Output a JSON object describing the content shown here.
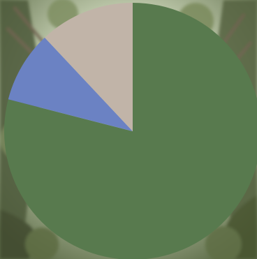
{
  "chart_data": {
    "type": "pie",
    "start_angle_deg": 0,
    "direction": "clockwise",
    "slices": [
      {
        "value": 79.0,
        "color": "#587a4e"
      },
      {
        "value": 9.0,
        "color": "#6b82c3"
      },
      {
        "value": 12.0,
        "color": "#c1b4a8"
      }
    ],
    "title": "",
    "legend": "none"
  },
  "background": {
    "description_color": "#8a9a78"
  }
}
